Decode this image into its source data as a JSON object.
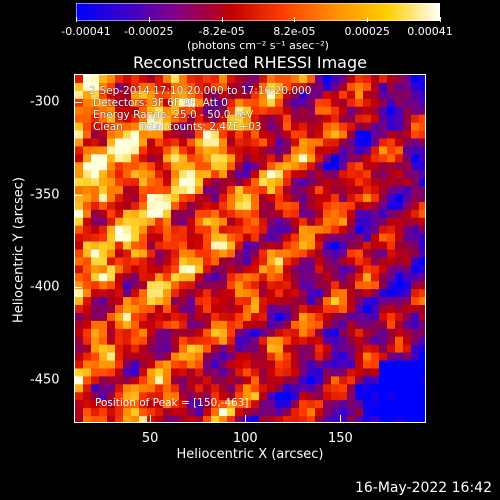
{
  "colorbar": {
    "ticks": [
      "-0.00041",
      "-0.00025",
      "-8.2e-05",
      "8.2e-05",
      "0.00025",
      "0.00041"
    ],
    "units": "(photons cm⁻² s⁻¹ asec⁻²)",
    "colors": [
      "#0000ff",
      "#3c00c8",
      "#8a0080",
      "#c00000",
      "#ff4000",
      "#ff9000",
      "#ffd000",
      "#ffffff"
    ]
  },
  "title": "Reconstructed RHESSI Image",
  "info": {
    "line1": "2-Sep-2014 17:10:20.000 to 17:16:20.000",
    "line2": "Detectors: 3F 6F 9F, Att 0",
    "line3": "Energy Range: 25.0 - 50.0 keV",
    "line4": "Clean     Total counts: 2.47E+03",
    "peak": "Position of Peak = [150,-463]"
  },
  "axes": {
    "xlabel": "Heliocentric X (arcsec)",
    "ylabel": "Heliocentric Y (arcsec)",
    "xticks": [
      50,
      100,
      150
    ],
    "yticks": [
      -300,
      -350,
      -400,
      -450
    ],
    "xlim": [
      10,
      195
    ],
    "ylim": [
      -473,
      -285
    ]
  },
  "timestamp": "16-May-2022 16:42"
}
